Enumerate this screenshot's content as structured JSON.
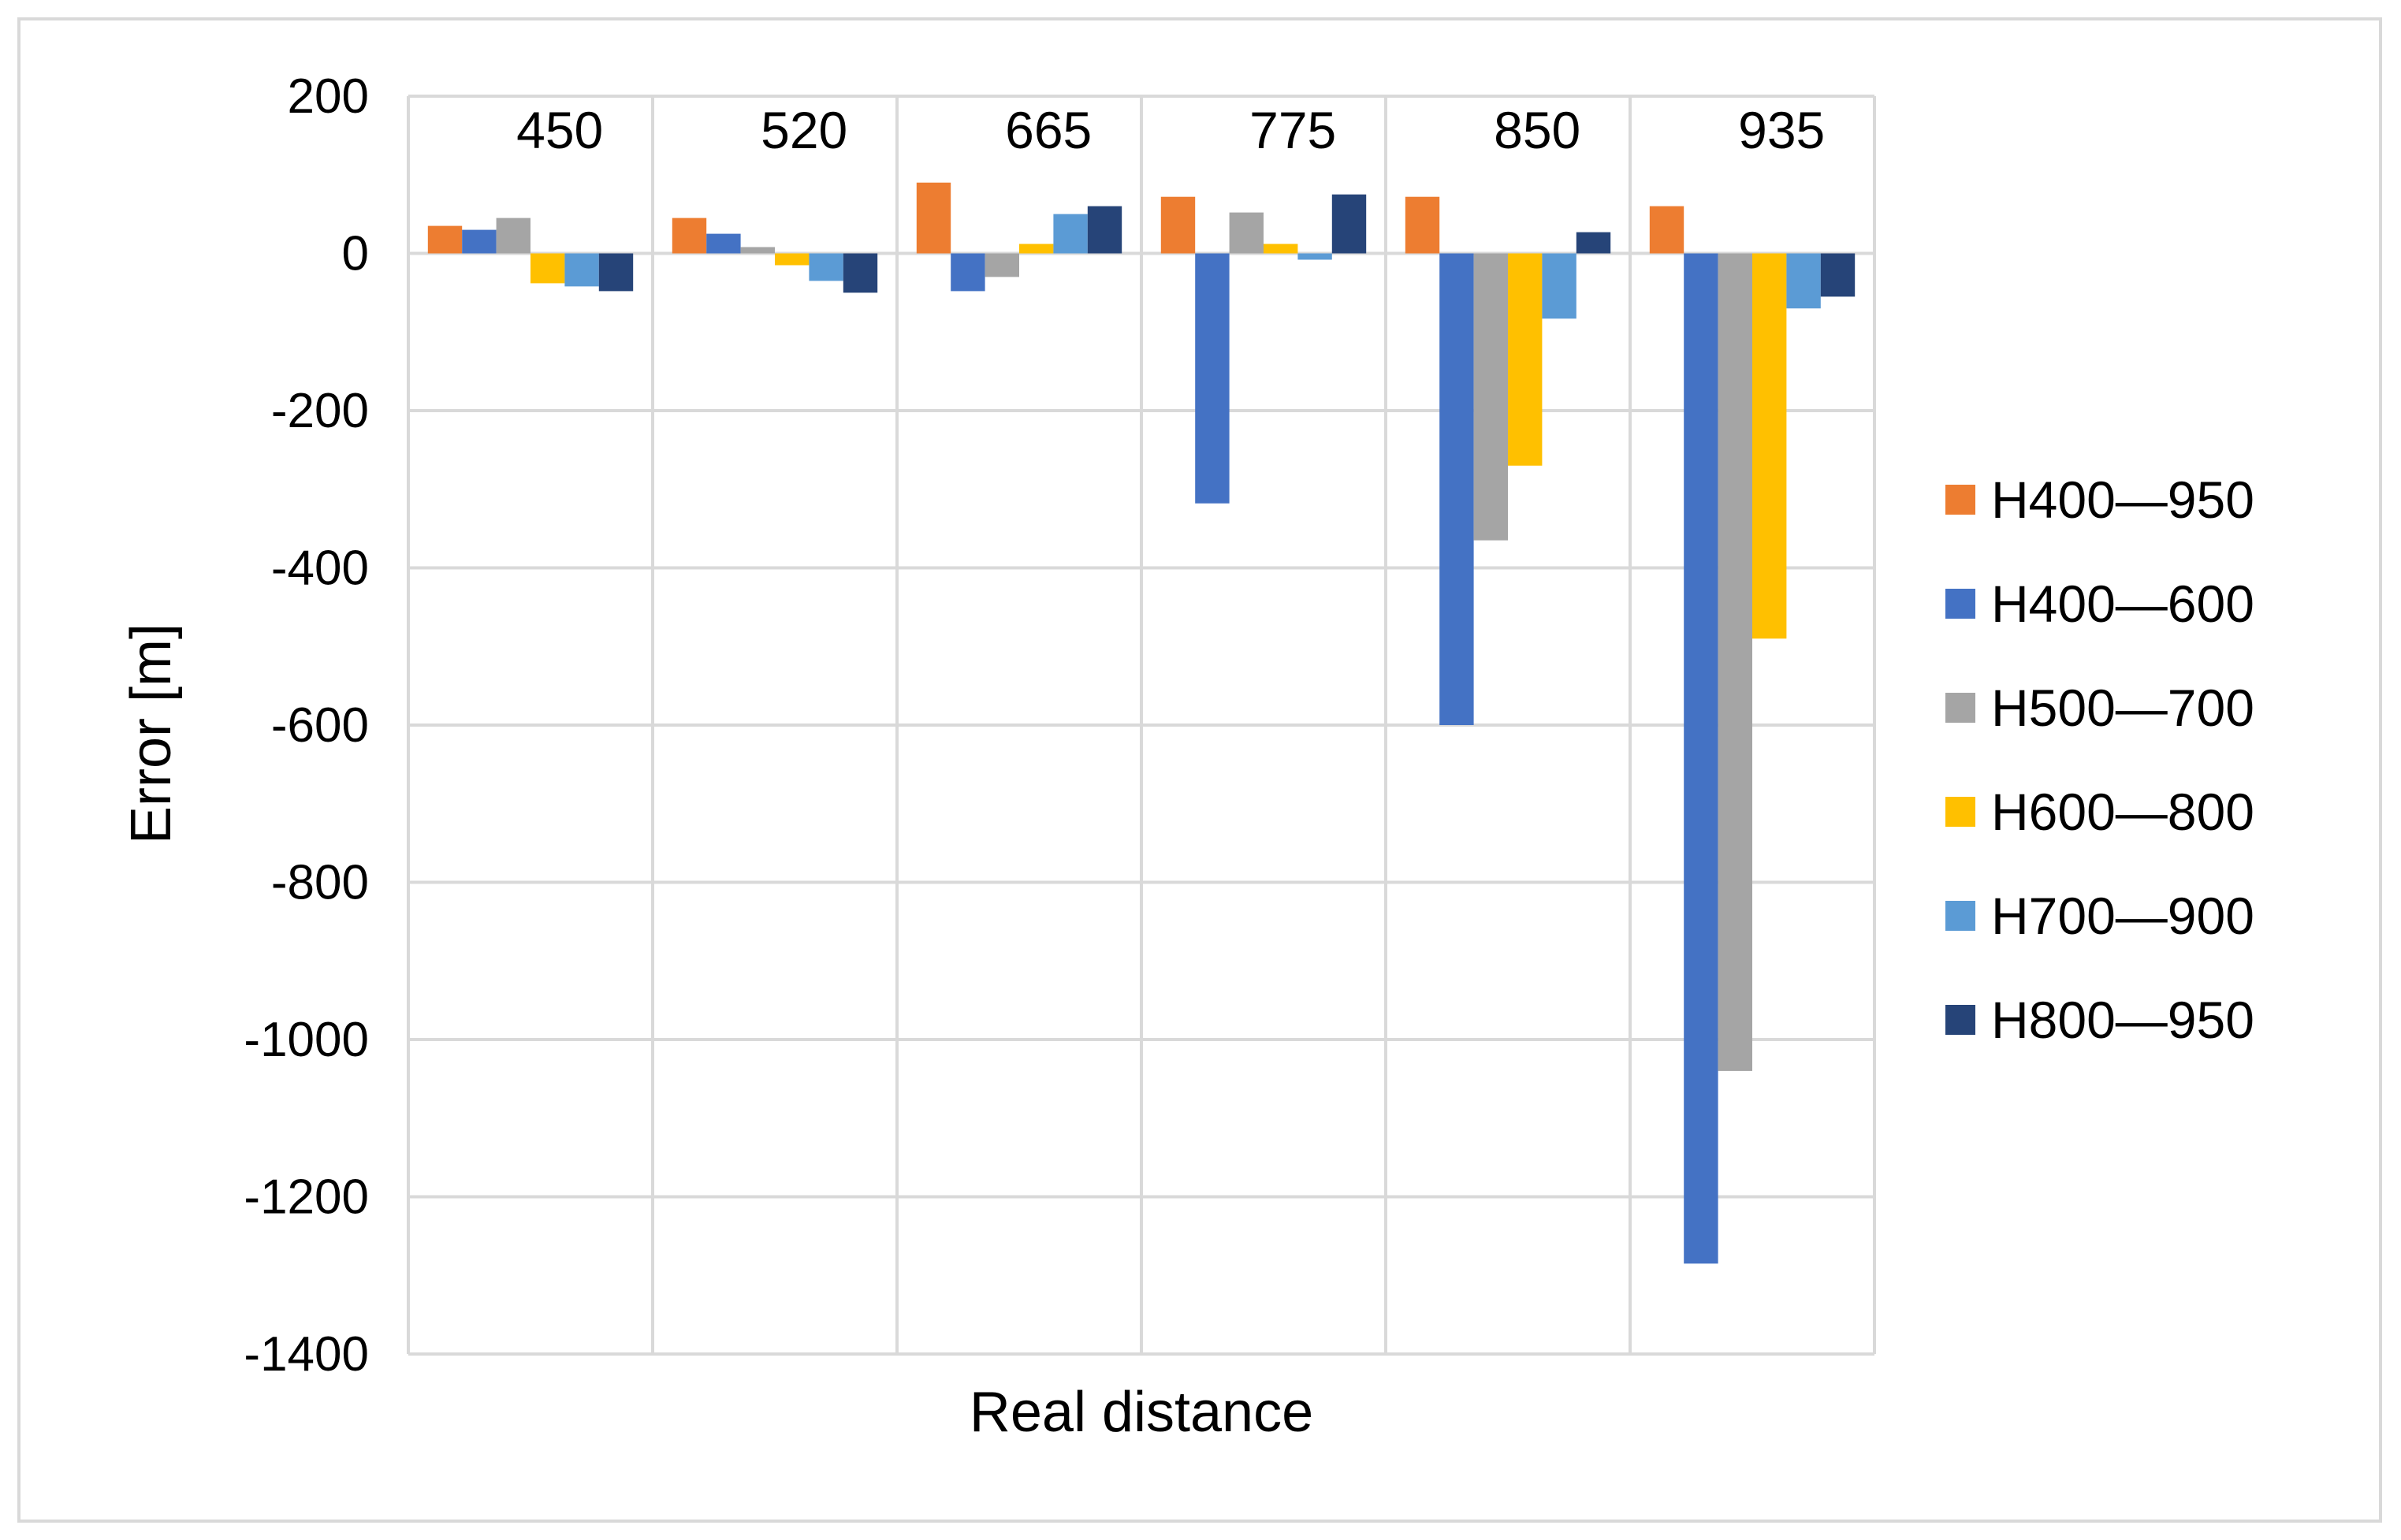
{
  "chart_data": {
    "type": "bar",
    "title": "",
    "xlabel": "Real distance",
    "ylabel": "Error [m]",
    "ylim": [
      -1400,
      200
    ],
    "yticks": [
      200,
      0,
      -200,
      -400,
      -600,
      -800,
      -1000,
      -1200,
      -1400
    ],
    "categories": [
      "450",
      "520",
      "665",
      "775",
      "850",
      "935"
    ],
    "category_label_position": "top",
    "grid": true,
    "legend_position": "right",
    "series": [
      {
        "name": "H400—950",
        "color": "#ED7D31",
        "values": [
          35,
          45,
          90,
          72,
          72,
          60
        ]
      },
      {
        "name": "H400—600",
        "color": "#4472C4",
        "values": [
          30,
          25,
          -48,
          -318,
          -600,
          -1285
        ]
      },
      {
        "name": "H500—700",
        "color": "#A5A5A5",
        "values": [
          45,
          8,
          -30,
          52,
          -365,
          -1040
        ]
      },
      {
        "name": "H600—800",
        "color": "#FFC000",
        "values": [
          -38,
          -15,
          12,
          12,
          -270,
          -490
        ]
      },
      {
        "name": "H700—900",
        "color": "#5B9BD5",
        "values": [
          -42,
          -35,
          50,
          -8,
          -83,
          -70
        ]
      },
      {
        "name": "H800—950",
        "color": "#264478",
        "values": [
          -48,
          -50,
          60,
          75,
          27,
          -55
        ]
      }
    ]
  }
}
